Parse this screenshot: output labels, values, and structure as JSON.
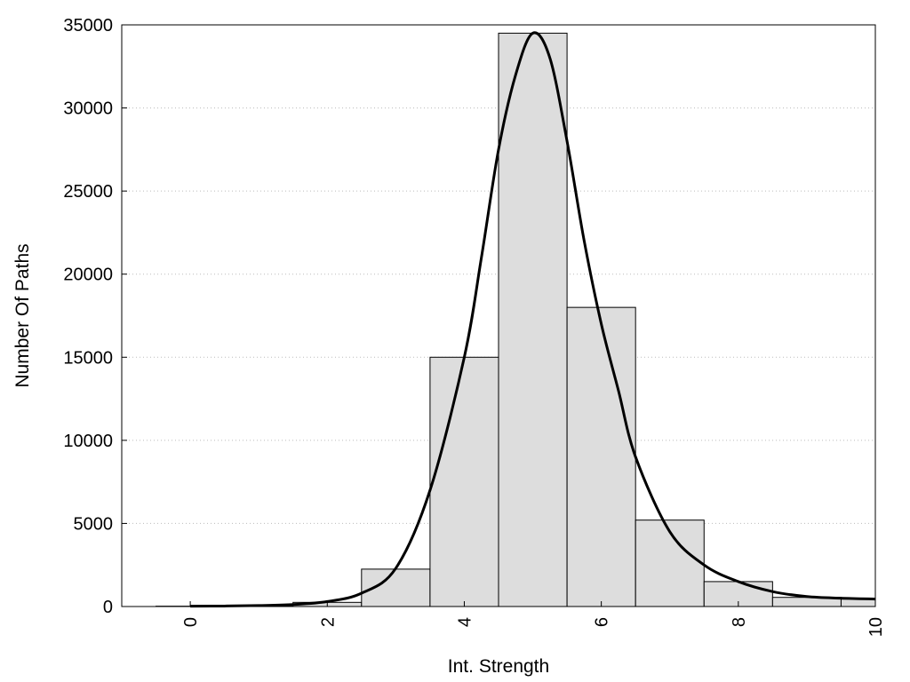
{
  "chart_data": {
    "type": "bar",
    "xlabel": "Int. Strength",
    "ylabel": "Number Of Paths",
    "xlim": [
      -1,
      10
    ],
    "ylim": [
      0,
      35000
    ],
    "x_ticks": [
      0,
      2,
      4,
      6,
      8,
      10
    ],
    "y_ticks": [
      0,
      5000,
      10000,
      15000,
      20000,
      25000,
      30000,
      35000
    ],
    "grid": "horizontal-dotted",
    "bar_width": 1,
    "bars": [
      {
        "x": 0,
        "y": 20
      },
      {
        "x": 1,
        "y": 60
      },
      {
        "x": 2,
        "y": 250
      },
      {
        "x": 3,
        "y": 2250
      },
      {
        "x": 4,
        "y": 15000
      },
      {
        "x": 5,
        "y": 34500
      },
      {
        "x": 6,
        "y": 18000
      },
      {
        "x": 7,
        "y": 5200
      },
      {
        "x": 8,
        "y": 1500
      },
      {
        "x": 9,
        "y": 550
      },
      {
        "x": 10,
        "y": 450
      }
    ],
    "curve": {
      "x": [
        0,
        0.5,
        1,
        1.5,
        2,
        2.5,
        3,
        3.5,
        4,
        4.25,
        4.5,
        4.75,
        5,
        5.25,
        5.5,
        5.75,
        6,
        6.25,
        6.5,
        7,
        7.5,
        8,
        8.5,
        9,
        9.5,
        10
      ],
      "y": [
        20,
        30,
        60,
        120,
        300,
        800,
        2300,
        7000,
        15000,
        21000,
        27500,
        32000,
        34500,
        33000,
        28000,
        22000,
        17000,
        13000,
        9000,
        4500,
        2500,
        1500,
        900,
        600,
        500,
        450
      ]
    },
    "colors": {
      "bar_fill": "#dddddd",
      "bar_stroke": "#000000",
      "curve": "#000000",
      "grid": "#bbbbbb"
    }
  }
}
